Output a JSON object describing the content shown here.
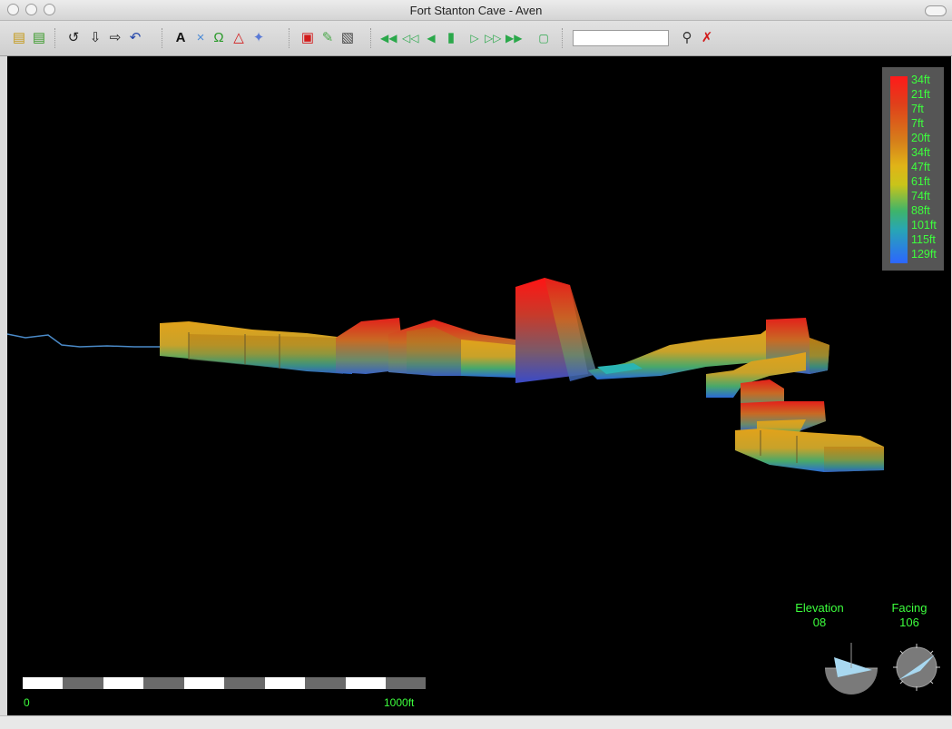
{
  "window": {
    "title": "Fort Stanton Cave - Aven"
  },
  "toolbar": {
    "search": {
      "value": "",
      "placeholder": ""
    },
    "icons": [
      "open-folder-icon",
      "open-folder-add-icon",
      "rotate-left-icon",
      "down-arrow-icon",
      "right-arrow-icon",
      "undo-icon",
      "label-icon",
      "cross-icon",
      "omega-icon",
      "warning-icon",
      "pin-icon",
      "box-icon",
      "pencil-icon",
      "pattern-icon",
      "rewind-fast-icon",
      "rewind-icon",
      "step-back-icon",
      "pause-icon",
      "play-icon",
      "fast-forward-icon",
      "forward-fast-icon",
      "stop-icon",
      "zoom-icon",
      "remove-icon"
    ]
  },
  "legend": {
    "labels": [
      "34ft",
      "21ft",
      "7ft",
      "7ft",
      "20ft",
      "34ft",
      "47ft",
      "61ft",
      "74ft",
      "88ft",
      "101ft",
      "115ft",
      "129ft"
    ],
    "colors": {
      "top": "#ff1a1a",
      "mid": "#e0b418",
      "bottom": "#2c66ff",
      "text": "#3dff3d"
    }
  },
  "scalebar": {
    "start_label": "0",
    "end_label": "1000ft"
  },
  "compass": {
    "elevation": {
      "label": "Elevation",
      "value": "08"
    },
    "facing": {
      "label": "Facing",
      "value": "106"
    }
  },
  "colors": {
    "background": "#000000",
    "label_text": "#3dff3d"
  }
}
